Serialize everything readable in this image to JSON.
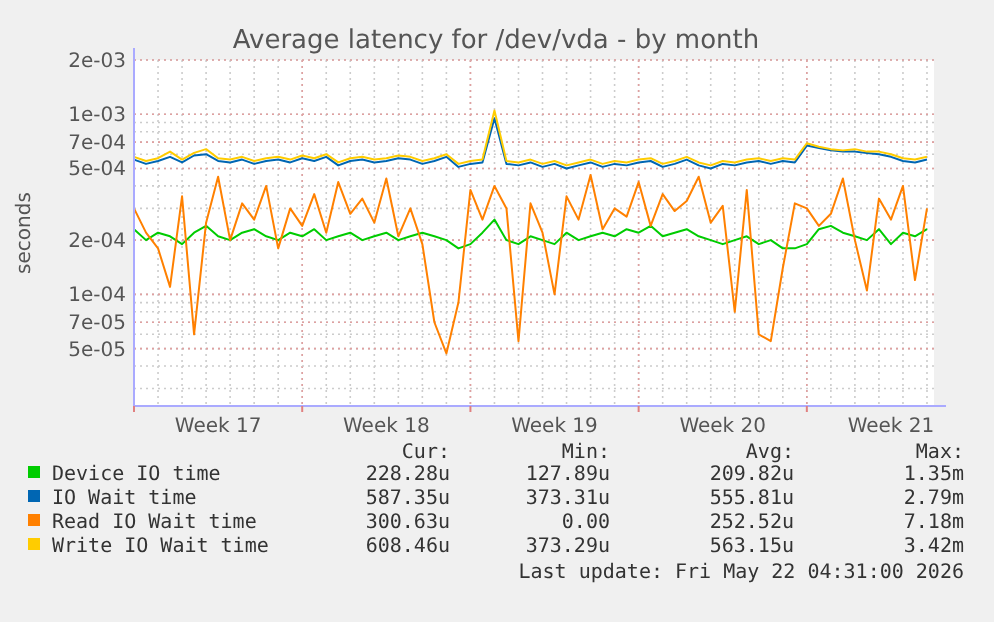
{
  "chart_data": {
    "type": "line",
    "title": "Average latency for /dev/vda - by month",
    "ylabel": "seconds",
    "log": true,
    "grid": true,
    "legend": "bottom",
    "line_style": "solid",
    "marker": "none",
    "xlim": [
      "2026-04-20T00:00",
      "2026-05-23T07:00"
    ],
    "xticks": [
      {
        "value": "2026-04-20T00:00",
        "label": null
      },
      {
        "value": "2026-04-27T00:00",
        "label": null
      },
      {
        "value": "2026-05-04T00:00",
        "label": null
      },
      {
        "value": "2026-05-11T00:00",
        "label": null
      },
      {
        "value": "2026-05-18T00:00",
        "label": null
      },
      {
        "value": "2026-04-23T12:00",
        "label": "Week 17"
      },
      {
        "value": "2026-04-30T12:00",
        "label": "Week 18"
      },
      {
        "value": "2026-05-07T12:00",
        "label": "Week 19"
      },
      {
        "value": "2026-05-14T12:00",
        "label": "Week 20"
      },
      {
        "value": "2026-05-21T12:00",
        "label": "Week 21"
      }
    ],
    "ylim": [
      2.4e-05,
      0.002
    ],
    "yticks": [
      {
        "value": 5e-05,
        "label": "5e-05"
      },
      {
        "value": 7e-05,
        "label": "7e-05"
      },
      {
        "value": 0.0001,
        "label": "1e-04"
      },
      {
        "value": 0.0002,
        "label": "2e-04"
      },
      {
        "value": 0.0005,
        "label": "5e-04"
      },
      {
        "value": 0.0007,
        "label": "7e-04"
      },
      {
        "value": 0.001,
        "label": "1e-03"
      },
      {
        "value": 0.002,
        "label": "2e-03"
      }
    ],
    "x": [
      "2026-04-20T00:00",
      "2026-04-20T12:00",
      "2026-04-21T00:00",
      "2026-04-21T12:00",
      "2026-04-22T00:00",
      "2026-04-22T12:00",
      "2026-04-23T00:00",
      "2026-04-23T12:00",
      "2026-04-24T00:00",
      "2026-04-24T12:00",
      "2026-04-25T00:00",
      "2026-04-25T12:00",
      "2026-04-26T00:00",
      "2026-04-26T12:00",
      "2026-04-27T00:00",
      "2026-04-27T12:00",
      "2026-04-28T00:00",
      "2026-04-28T12:00",
      "2026-04-29T00:00",
      "2026-04-29T12:00",
      "2026-04-30T00:00",
      "2026-04-30T12:00",
      "2026-05-01T00:00",
      "2026-05-01T12:00",
      "2026-05-02T00:00",
      "2026-05-02T12:00",
      "2026-05-03T00:00",
      "2026-05-03T12:00",
      "2026-05-04T00:00",
      "2026-05-04T12:00",
      "2026-05-05T00:00",
      "2026-05-05T12:00",
      "2026-05-06T00:00",
      "2026-05-06T12:00",
      "2026-05-07T00:00",
      "2026-05-07T12:00",
      "2026-05-08T00:00",
      "2026-05-08T12:00",
      "2026-05-09T00:00",
      "2026-05-09T12:00",
      "2026-05-10T00:00",
      "2026-05-10T12:00",
      "2026-05-11T00:00",
      "2026-05-11T12:00",
      "2026-05-12T00:00",
      "2026-05-12T12:00",
      "2026-05-13T00:00",
      "2026-05-13T12:00",
      "2026-05-14T00:00",
      "2026-05-14T12:00",
      "2026-05-15T00:00",
      "2026-05-15T12:00",
      "2026-05-16T00:00",
      "2026-05-16T12:00",
      "2026-05-17T00:00",
      "2026-05-17T12:00",
      "2026-05-18T00:00",
      "2026-05-18T12:00",
      "2026-05-19T00:00",
      "2026-05-19T12:00",
      "2026-05-20T00:00",
      "2026-05-20T12:00",
      "2026-05-21T00:00",
      "2026-05-21T12:00",
      "2026-05-22T00:00",
      "2026-05-22T12:00",
      "2026-05-23T00:00"
    ],
    "series": [
      {
        "name": "Device IO time",
        "color": "#00cc00",
        "values": [
          0.00023,
          0.0002,
          0.00022,
          0.00021,
          0.00019,
          0.00022,
          0.00024,
          0.00021,
          0.0002,
          0.00022,
          0.00023,
          0.00021,
          0.0002,
          0.00022,
          0.00021,
          0.00023,
          0.0002,
          0.00021,
          0.00022,
          0.0002,
          0.00021,
          0.00022,
          0.0002,
          0.00021,
          0.00022,
          0.00021,
          0.0002,
          0.00018,
          0.00019,
          0.00022,
          0.00026,
          0.0002,
          0.00019,
          0.00021,
          0.0002,
          0.00019,
          0.00022,
          0.0002,
          0.00021,
          0.00022,
          0.00021,
          0.00023,
          0.00022,
          0.00024,
          0.00021,
          0.00022,
          0.00023,
          0.00021,
          0.0002,
          0.00019,
          0.0002,
          0.00021,
          0.00019,
          0.0002,
          0.00018,
          0.00018,
          0.00019,
          0.00023,
          0.00024,
          0.00022,
          0.00021,
          0.0002,
          0.00023,
          0.00019,
          0.00022,
          0.00021,
          0.00023
        ]
      },
      {
        "name": "IO Wait time",
        "color": "#0066b3",
        "values": [
          0.00056,
          0.00053,
          0.00055,
          0.00058,
          0.00054,
          0.00059,
          0.0006,
          0.00055,
          0.00054,
          0.00056,
          0.00053,
          0.00055,
          0.00056,
          0.00054,
          0.00057,
          0.00055,
          0.00058,
          0.00052,
          0.00055,
          0.00056,
          0.00054,
          0.00055,
          0.00057,
          0.00056,
          0.00053,
          0.00055,
          0.00058,
          0.00051,
          0.00053,
          0.00054,
          0.00095,
          0.00053,
          0.00052,
          0.00054,
          0.00051,
          0.00053,
          0.0005,
          0.00052,
          0.00054,
          0.00051,
          0.00053,
          0.00052,
          0.00054,
          0.00055,
          0.00051,
          0.00053,
          0.00056,
          0.00052,
          0.0005,
          0.00053,
          0.00052,
          0.00054,
          0.00055,
          0.00053,
          0.00055,
          0.00054,
          0.00067,
          0.00065,
          0.00063,
          0.00062,
          0.00062,
          0.00061,
          0.0006,
          0.00058,
          0.00055,
          0.00054,
          0.00056
        ]
      },
      {
        "name": "Read IO Wait time",
        "color": "#ff8000",
        "values": [
          0.0003,
          0.00022,
          0.00018,
          0.00011,
          0.00035,
          6e-05,
          0.00025,
          0.00045,
          0.0002,
          0.00032,
          0.00026,
          0.0004,
          0.00018,
          0.0003,
          0.00024,
          0.00036,
          0.00022,
          0.00042,
          0.00028,
          0.00034,
          0.00025,
          0.00044,
          0.00021,
          0.0003,
          0.00019,
          7e-05,
          4.7e-05,
          9e-05,
          0.00038,
          0.00026,
          0.0004,
          0.0003,
          5.5e-05,
          0.00032,
          0.00022,
          0.0001,
          0.00035,
          0.00026,
          0.00046,
          0.00023,
          0.0003,
          0.00027,
          0.00042,
          0.00024,
          0.00036,
          0.00029,
          0.00033,
          0.00045,
          0.00025,
          0.00031,
          8e-05,
          0.00038,
          6e-05,
          5.5e-05,
          0.00014,
          0.00032,
          0.0003,
          0.00024,
          0.00028,
          0.00044,
          0.0002,
          0.000105,
          0.00034,
          0.00026,
          0.0004,
          0.00012,
          0.0003
        ]
      },
      {
        "name": "Write IO Wait time",
        "color": "#ffcc00",
        "values": [
          0.00058,
          0.00055,
          0.00057,
          0.00062,
          0.00056,
          0.00061,
          0.00064,
          0.00057,
          0.00056,
          0.00058,
          0.00055,
          0.00057,
          0.00058,
          0.00056,
          0.00059,
          0.00057,
          0.0006,
          0.00054,
          0.00057,
          0.00058,
          0.00056,
          0.00057,
          0.00059,
          0.00058,
          0.00055,
          0.00057,
          0.0006,
          0.00053,
          0.00055,
          0.00056,
          0.00105,
          0.00055,
          0.00054,
          0.00056,
          0.00053,
          0.00055,
          0.00052,
          0.00054,
          0.00056,
          0.00053,
          0.00055,
          0.00054,
          0.00056,
          0.00057,
          0.00053,
          0.00055,
          0.00058,
          0.00054,
          0.00052,
          0.00055,
          0.00054,
          0.00056,
          0.00057,
          0.00055,
          0.00057,
          0.00056,
          0.00069,
          0.00066,
          0.00064,
          0.00063,
          0.00064,
          0.00062,
          0.00062,
          0.0006,
          0.00057,
          0.00056,
          0.00058
        ]
      }
    ],
    "annotations": [
      "Cur:",
      "Min:",
      "Avg:",
      "Max:",
      "228.28u",
      "127.89u",
      "209.82u",
      "1.35m",
      "587.35u",
      "373.31u",
      "555.81u",
      "2.79m",
      "300.63u",
      "0.00",
      "252.52u",
      "7.18m",
      "608.46u",
      "373.29u",
      "563.15u",
      "3.42m",
      "Last update: Fri May 22 04:31:00 2026"
    ]
  }
}
